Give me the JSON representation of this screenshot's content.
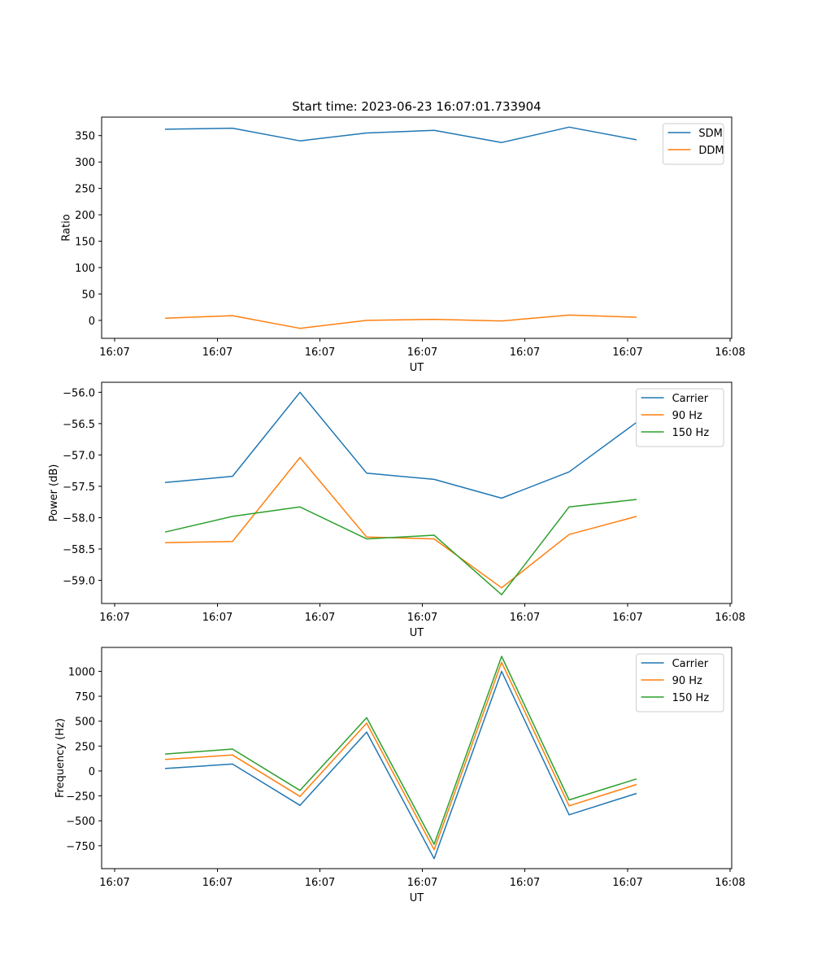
{
  "figure": {
    "title": "Start time: 2023-06-23 16:07:01.733904"
  },
  "chart_data": [
    {
      "type": "line",
      "title": "Start time: 2023-06-23 16:07:01.733904",
      "xlabel": "UT",
      "ylabel": "Ratio",
      "x_ticks": [
        "16:07",
        "16:07",
        "16:07",
        "16:07",
        "16:07",
        "16:07",
        "16:08"
      ],
      "x": [
        1,
        2,
        3,
        4,
        5,
        6,
        7,
        8
      ],
      "xlim": [
        0,
        9
      ],
      "ylim": [
        -34,
        385
      ],
      "yticks": [
        0,
        50,
        100,
        150,
        200,
        250,
        300,
        350
      ],
      "ytick_labels": [
        "0",
        "50",
        "100",
        "150",
        "200",
        "250",
        "300",
        "350"
      ],
      "legend": "top-right",
      "series": [
        {
          "name": "SDM",
          "color": "#1f77b4",
          "values": [
            362,
            364,
            340,
            355,
            360,
            337,
            366,
            342
          ]
        },
        {
          "name": "DDM",
          "color": "#ff7f0e",
          "values": [
            4,
            9,
            -15,
            0,
            2,
            -1,
            10,
            6
          ]
        }
      ]
    },
    {
      "type": "line",
      "xlabel": "UT",
      "ylabel": "Power (dB)",
      "x_ticks": [
        "16:07",
        "16:07",
        "16:07",
        "16:07",
        "16:07",
        "16:07",
        "16:08"
      ],
      "x": [
        1,
        2,
        3,
        4,
        5,
        6,
        7,
        8
      ],
      "xlim": [
        0,
        9
      ],
      "ylim": [
        -59.37,
        -55.84
      ],
      "yticks": [
        -59.0,
        -58.5,
        -58.0,
        -57.5,
        -57.0,
        -56.5,
        -56.0
      ],
      "ytick_labels": [
        "−59.0",
        "−58.5",
        "−58.0",
        "−57.5",
        "−57.0",
        "−56.5",
        "−56.0"
      ],
      "legend": "top-right",
      "series": [
        {
          "name": "Carrier",
          "color": "#1f77b4",
          "values": [
            -57.44,
            -57.34,
            -56.0,
            -57.29,
            -57.39,
            -57.69,
            -57.27,
            -56.48
          ]
        },
        {
          "name": "90 Hz",
          "color": "#ff7f0e",
          "values": [
            -58.4,
            -58.38,
            -57.04,
            -58.31,
            -58.34,
            -59.12,
            -58.27,
            -57.98
          ]
        },
        {
          "name": "150 Hz",
          "color": "#2ca02c",
          "values": [
            -58.23,
            -57.98,
            -57.83,
            -58.34,
            -58.28,
            -59.23,
            -57.83,
            -57.71
          ]
        }
      ]
    },
    {
      "type": "line",
      "xlabel": "UT",
      "ylabel": "Frequency (Hz)",
      "x_ticks": [
        "16:07",
        "16:07",
        "16:07",
        "16:07",
        "16:07",
        "16:07",
        "16:08"
      ],
      "x": [
        1,
        2,
        3,
        4,
        5,
        6,
        7,
        8
      ],
      "xlim": [
        0,
        9
      ],
      "ylim": [
        -980,
        1240
      ],
      "yticks": [
        -750,
        -500,
        -250,
        0,
        250,
        500,
        750,
        1000
      ],
      "ytick_labels": [
        "−750",
        "−500",
        "−250",
        "0",
        "250",
        "500",
        "750",
        "1000"
      ],
      "legend": "top-right",
      "series": [
        {
          "name": "Carrier",
          "color": "#1f77b4",
          "values": [
            25,
            70,
            -345,
            390,
            -880,
            1000,
            -440,
            -225
          ]
        },
        {
          "name": "90 Hz",
          "color": "#ff7f0e",
          "values": [
            115,
            160,
            -255,
            480,
            -790,
            1090,
            -350,
            -135
          ]
        },
        {
          "name": "150 Hz",
          "color": "#2ca02c",
          "values": [
            170,
            220,
            -195,
            535,
            -735,
            1150,
            -290,
            -80
          ]
        }
      ]
    }
  ]
}
